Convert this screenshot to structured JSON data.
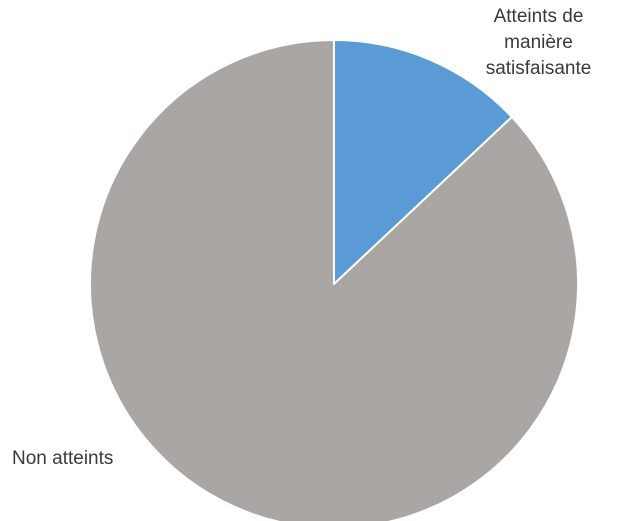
{
  "chart_data": {
    "type": "pie",
    "title": "",
    "slices": [
      {
        "label": "Atteints de\nmanière\nsatisfaisante",
        "value": 13,
        "color": "#5b9bd5"
      },
      {
        "label": "Non atteints",
        "value": 87,
        "color": "#aaa6a4"
      }
    ],
    "start_angle": "12 o'clock",
    "direction": "clockwise",
    "legend": "none",
    "slice_border_color": "#ffffff"
  }
}
